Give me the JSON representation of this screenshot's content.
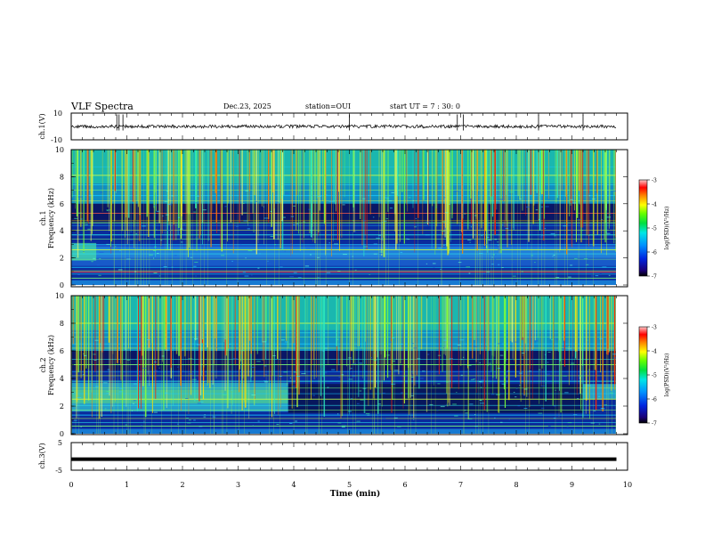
{
  "header": {
    "title": "VLF Spectra",
    "date": "Dec.23, 2025",
    "station": "station=OUI",
    "start_ut": "start UT = 7 : 30: 0"
  },
  "colors": {
    "axis": "#000000",
    "background": "#ffffff"
  },
  "chart_data": [
    {
      "type": "line",
      "id": "ch1-waveform",
      "ylabel": "ch.1(V)",
      "ylim": [
        -10,
        10
      ],
      "ytick_labels": [
        "10",
        "-10"
      ],
      "x_range_min": [
        0,
        9.8
      ],
      "description_series": [
        {
          "name": "ch.1 voltage",
          "mean": 0,
          "amplitude_approx": 2
        }
      ]
    },
    {
      "type": "heatmap",
      "id": "ch1-spectrogram",
      "ylabel": "ch.1\nFrequency (kHz)",
      "ylabel_lines": [
        "ch.1",
        "Frequency (kHz)"
      ],
      "ylim": [
        0,
        10
      ],
      "ytick_labels": [
        "0",
        "2",
        "4",
        "6",
        "8",
        "10"
      ],
      "colorbar": {
        "label": "log(PSD)(V²/Hz)",
        "range": [
          -7,
          -3
        ],
        "tick_labels": [
          "-3",
          "-4",
          "-5",
          "-6",
          "-7"
        ]
      }
    },
    {
      "type": "heatmap",
      "id": "ch2-spectrogram",
      "ylabel": "ch.2\nFrequency (kHz)",
      "ylabel_lines": [
        "ch.2",
        "Frequency (kHz)"
      ],
      "ylim": [
        0,
        10
      ],
      "ytick_labels": [
        "0",
        "2",
        "4",
        "6",
        "8",
        "10"
      ],
      "colorbar": {
        "label": "log(PSD)(V²/Hz)",
        "range": [
          -7,
          -3
        ],
        "tick_labels": [
          "-3",
          "-4",
          "-5",
          "-6",
          "-7"
        ]
      }
    },
    {
      "type": "line",
      "id": "ch3-waveform",
      "ylabel": "ch.3(V)",
      "ylim": [
        -5,
        5
      ],
      "ytick_labels": [
        "5",
        "-5"
      ],
      "series": [
        {
          "name": "ch.3 voltage",
          "value": -1
        }
      ]
    }
  ],
  "xaxis": {
    "label": "Time (min)",
    "range": [
      0,
      10
    ],
    "tick_labels": [
      "0",
      "1",
      "2",
      "3",
      "4",
      "5",
      "6",
      "7",
      "8",
      "9",
      "10"
    ],
    "data_end": 9.8
  }
}
